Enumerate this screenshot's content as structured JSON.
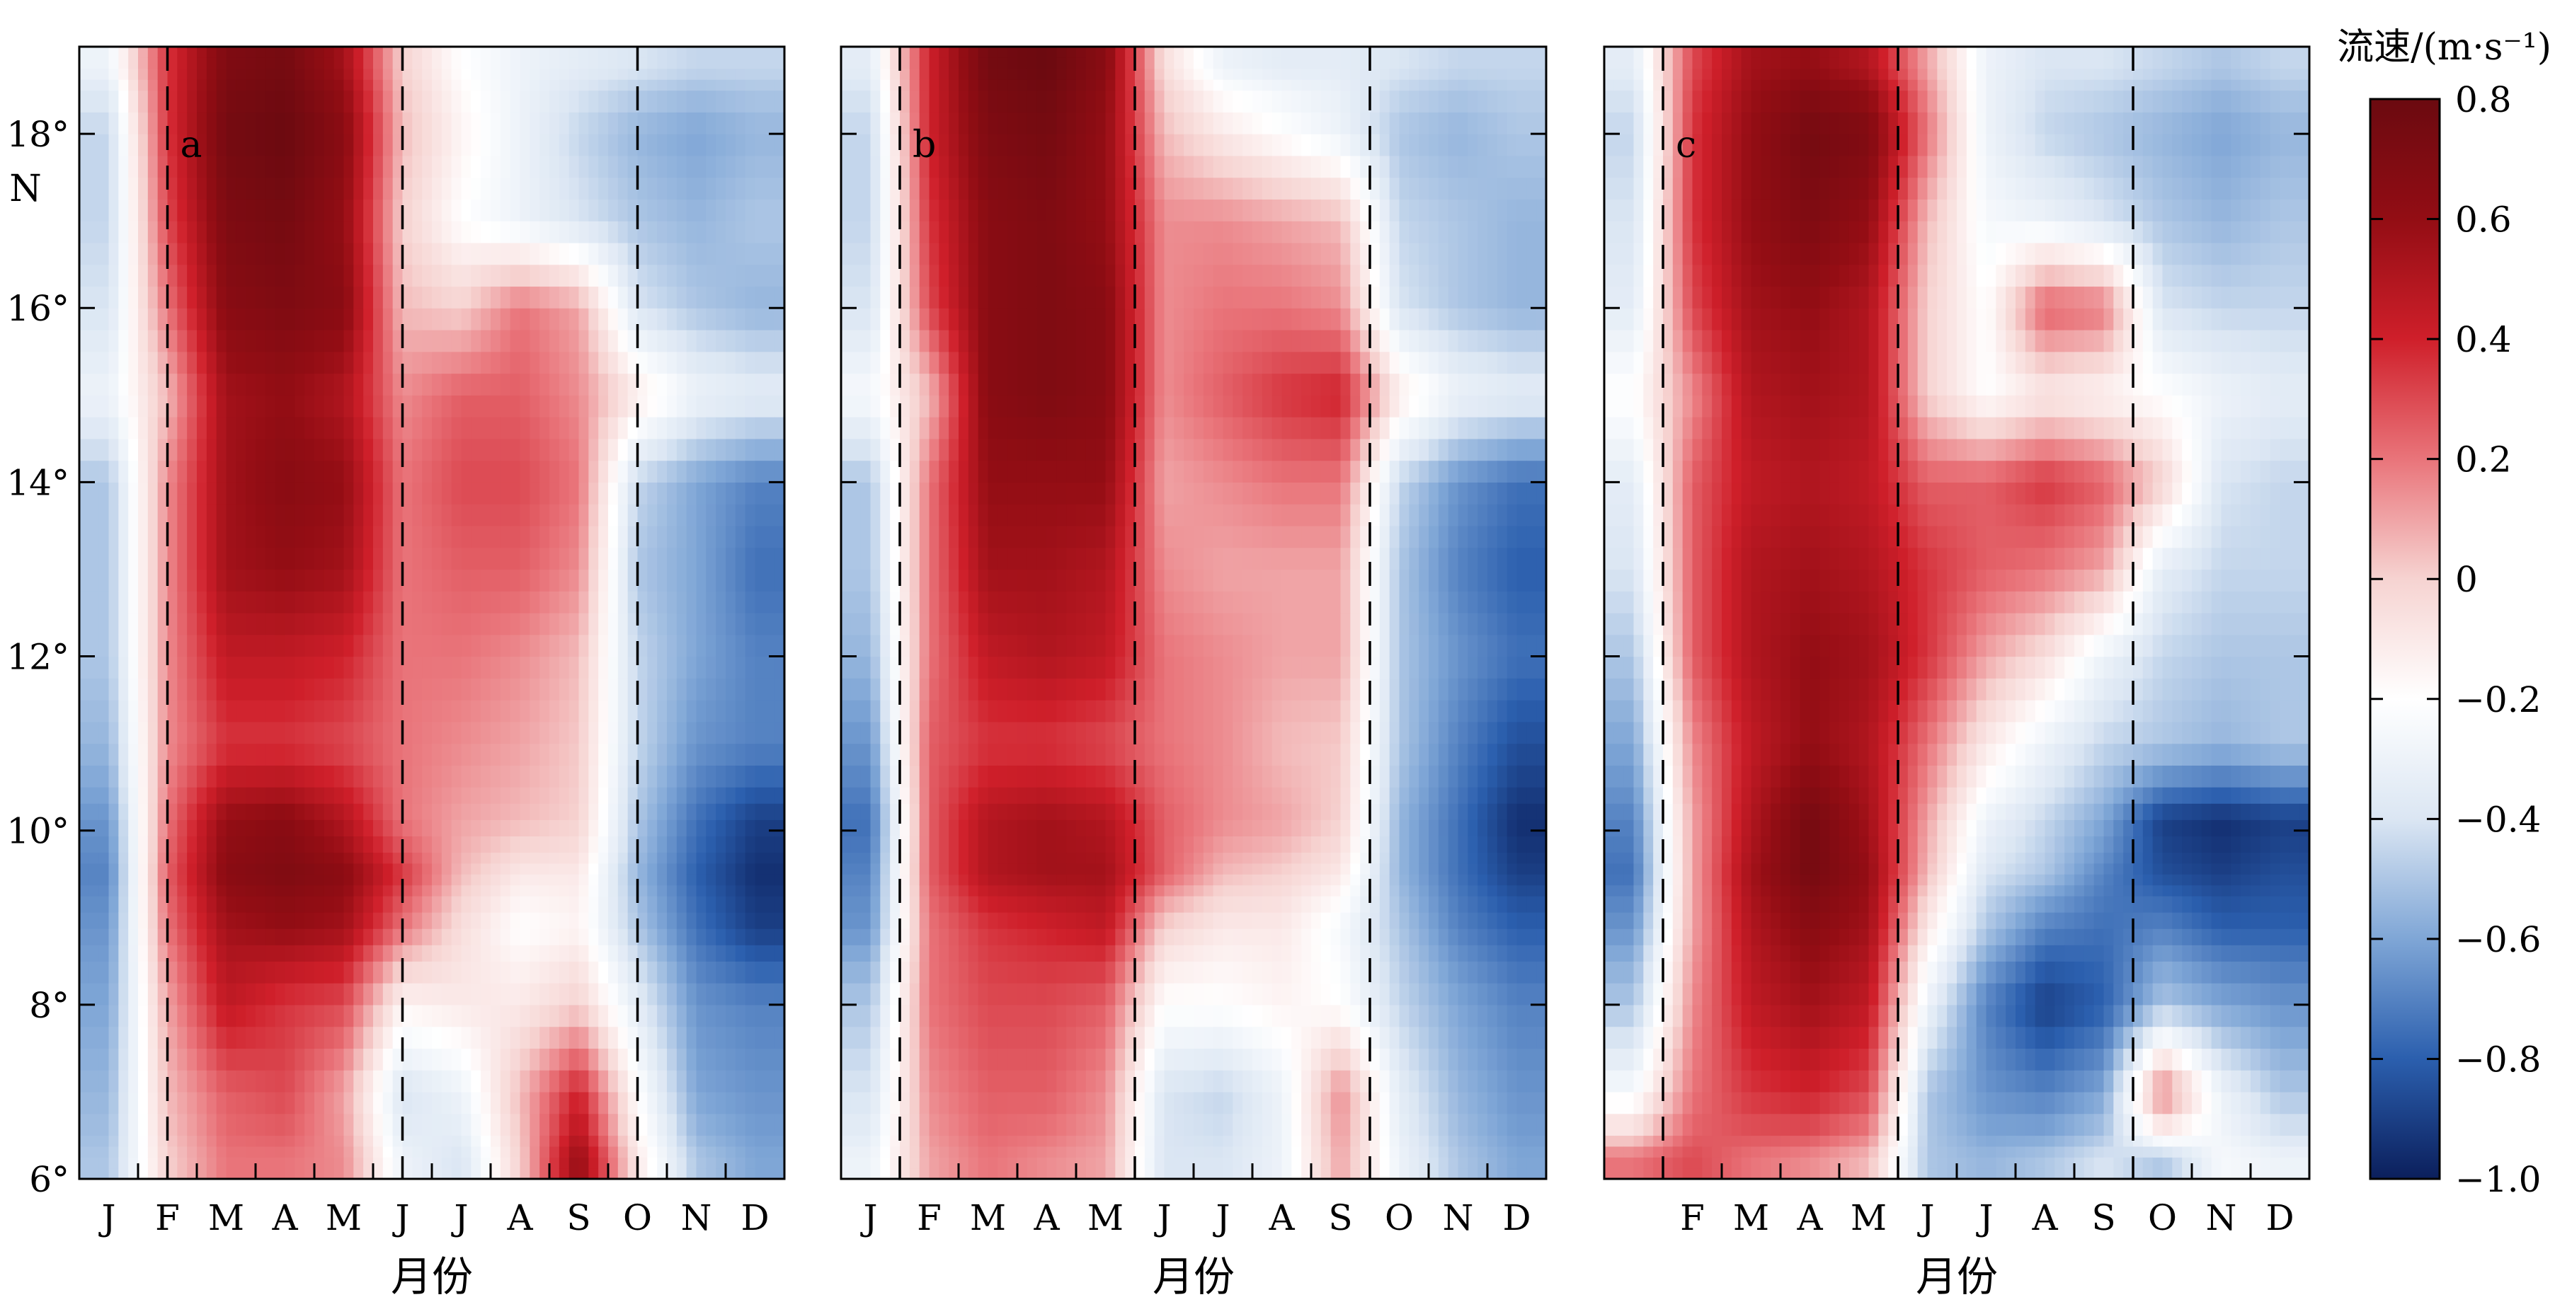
{
  "chart_data": {
    "type": "heatmap",
    "xlabel": "月份",
    "ylabel_suffix": "N",
    "x_months": [
      "J",
      "F",
      "M",
      "A",
      "M",
      "J",
      "J",
      "A",
      "S",
      "O",
      "N",
      "D"
    ],
    "y_ticks": [
      6,
      8,
      10,
      12,
      14,
      16,
      18
    ],
    "y_tick_labels": [
      "6°",
      "8°",
      "10°",
      "12°",
      "14°",
      "16°",
      "18°"
    ],
    "ylim": [
      6,
      19
    ],
    "colorbar": {
      "title": "流速/(m·s⁻¹)",
      "range": [
        -1.0,
        0.8
      ],
      "ticks": [
        0.8,
        0.6,
        0.4,
        0.2,
        0,
        -0.2,
        -0.4,
        -0.6,
        -0.8,
        -1.0
      ],
      "tick_labels": [
        "0.8",
        "0.6",
        "0.4",
        "0.2",
        "0",
        "−0.2",
        "−0.4",
        "−0.6",
        "−0.8",
        "−1.0"
      ],
      "colors": [
        "#0b1f5c",
        "#2b5fae",
        "#7fa6d6",
        "#dbe6f3",
        "#ffffff",
        "#f6d3d1",
        "#e9747a",
        "#cf1f2a",
        "#930d14",
        "#6b0a10"
      ]
    },
    "panels": [
      {
        "label": "a",
        "month_labels": [
          "J",
          "F",
          "M",
          "A",
          "M",
          "J",
          "J",
          "A",
          "S",
          "O",
          "N",
          "D"
        ],
        "dashed_months": [
          1.5,
          5.5,
          9.5
        ],
        "latitudes": [
          6,
          7,
          8,
          9,
          9.5,
          10,
          11,
          12,
          13,
          14,
          15,
          16,
          17,
          18,
          19
        ],
        "values": [
          [
            -0.5,
            0.0,
            0.2,
            0.2,
            0.15,
            -0.3,
            -0.4,
            0.0,
            0.6,
            -0.1,
            -0.5,
            -0.6
          ],
          [
            -0.55,
            0.05,
            0.25,
            0.3,
            0.1,
            -0.4,
            -0.3,
            0.05,
            0.4,
            -0.2,
            -0.6,
            -0.65
          ],
          [
            -0.6,
            0.1,
            0.45,
            0.35,
            0.3,
            -0.15,
            -0.1,
            -0.1,
            0.0,
            -0.35,
            -0.65,
            -0.7
          ],
          [
            -0.65,
            0.2,
            0.55,
            0.6,
            0.55,
            0.2,
            -0.05,
            -0.2,
            -0.15,
            -0.5,
            -0.75,
            -0.9
          ],
          [
            -0.7,
            0.25,
            0.65,
            0.7,
            0.65,
            0.35,
            0.05,
            -0.1,
            -0.1,
            -0.55,
            -0.8,
            -0.95
          ],
          [
            -0.65,
            0.2,
            0.6,
            0.65,
            0.5,
            0.2,
            0.1,
            0.05,
            0.0,
            -0.5,
            -0.75,
            -0.9
          ],
          [
            -0.55,
            0.15,
            0.35,
            0.35,
            0.3,
            0.2,
            0.15,
            0.1,
            0.02,
            -0.45,
            -0.65,
            -0.7
          ],
          [
            -0.5,
            0.15,
            0.45,
            0.45,
            0.4,
            0.2,
            0.2,
            0.15,
            0.05,
            -0.45,
            -0.6,
            -0.7
          ],
          [
            -0.5,
            0.15,
            0.55,
            0.6,
            0.55,
            0.2,
            0.25,
            0.25,
            0.15,
            -0.5,
            -0.6,
            -0.75
          ],
          [
            -0.5,
            0.15,
            0.55,
            0.65,
            0.6,
            0.2,
            0.3,
            0.3,
            0.2,
            -0.45,
            -0.6,
            -0.7
          ],
          [
            -0.3,
            0.05,
            0.55,
            0.6,
            0.5,
            0.15,
            0.25,
            0.25,
            0.15,
            -0.1,
            -0.3,
            -0.35
          ],
          [
            -0.4,
            0.2,
            0.65,
            0.7,
            0.65,
            0.05,
            0.0,
            0.2,
            0.1,
            -0.4,
            -0.5,
            -0.55
          ],
          [
            -0.45,
            0.3,
            0.7,
            0.75,
            0.6,
            0.0,
            -0.2,
            -0.3,
            -0.4,
            -0.5,
            -0.55,
            -0.5
          ],
          [
            -0.45,
            0.35,
            0.75,
            0.8,
            0.65,
            0.05,
            -0.15,
            -0.3,
            -0.45,
            -0.55,
            -0.6,
            -0.55
          ],
          [
            -0.3,
            0.35,
            0.7,
            0.75,
            0.55,
            0.0,
            -0.2,
            -0.3,
            -0.35,
            -0.4,
            -0.45,
            -0.45
          ]
        ]
      },
      {
        "label": "b",
        "month_labels": [
          "J",
          "F",
          "M",
          "A",
          "M",
          "J",
          "J",
          "A",
          "S",
          "O",
          "N",
          "D"
        ],
        "dashed_months": [
          1.0,
          5.0,
          9.0
        ],
        "latitudes": [
          6,
          7,
          8,
          9,
          9.5,
          10,
          11,
          12,
          13,
          14,
          15,
          16,
          17,
          18,
          19
        ],
        "values": [
          [
            -0.3,
            0.1,
            0.2,
            0.15,
            0.1,
            -0.4,
            -0.4,
            -0.3,
            0.1,
            -0.3,
            -0.5,
            -0.6
          ],
          [
            -0.4,
            0.15,
            0.25,
            0.25,
            0.15,
            -0.4,
            -0.45,
            -0.3,
            0.15,
            -0.35,
            -0.55,
            -0.65
          ],
          [
            -0.5,
            0.2,
            0.3,
            0.3,
            0.25,
            -0.2,
            -0.2,
            -0.15,
            -0.2,
            -0.45,
            -0.6,
            -0.7
          ],
          [
            -0.65,
            0.2,
            0.35,
            0.4,
            0.45,
            0.0,
            -0.1,
            -0.1,
            -0.25,
            -0.5,
            -0.7,
            -0.8
          ],
          [
            -0.7,
            0.25,
            0.5,
            0.55,
            0.55,
            0.25,
            0.05,
            0.0,
            -0.1,
            -0.55,
            -0.75,
            -0.9
          ],
          [
            -0.75,
            0.25,
            0.5,
            0.55,
            0.5,
            0.25,
            0.15,
            0.1,
            0.0,
            -0.55,
            -0.75,
            -0.95
          ],
          [
            -0.65,
            0.25,
            0.35,
            0.35,
            0.3,
            0.2,
            0.15,
            0.05,
            0.02,
            -0.5,
            -0.7,
            -0.85
          ],
          [
            -0.55,
            0.2,
            0.45,
            0.5,
            0.45,
            0.2,
            0.15,
            0.1,
            0.1,
            -0.5,
            -0.65,
            -0.75
          ],
          [
            -0.5,
            0.2,
            0.55,
            0.55,
            0.5,
            0.15,
            0.1,
            0.1,
            0.1,
            -0.5,
            -0.7,
            -0.8
          ],
          [
            -0.5,
            0.2,
            0.6,
            0.6,
            0.6,
            0.1,
            0.15,
            0.2,
            0.2,
            -0.45,
            -0.65,
            -0.75
          ],
          [
            -0.25,
            0.05,
            0.65,
            0.7,
            0.65,
            0.15,
            0.25,
            0.35,
            0.4,
            -0.1,
            -0.3,
            -0.35
          ],
          [
            -0.4,
            0.3,
            0.65,
            0.7,
            0.65,
            0.15,
            0.2,
            0.2,
            0.15,
            -0.4,
            -0.5,
            -0.55
          ],
          [
            -0.45,
            0.35,
            0.65,
            0.7,
            0.6,
            0.15,
            0.15,
            0.1,
            0.05,
            -0.45,
            -0.5,
            -0.55
          ],
          [
            -0.45,
            0.4,
            0.7,
            0.75,
            0.6,
            0.05,
            -0.1,
            -0.2,
            -0.3,
            -0.5,
            -0.55,
            -0.5
          ],
          [
            -0.35,
            0.4,
            0.75,
            0.8,
            0.65,
            -0.05,
            -0.3,
            -0.35,
            -0.35,
            -0.4,
            -0.45,
            -0.45
          ]
        ]
      },
      {
        "label": "c",
        "month_labels": [
          "",
          "F",
          "M",
          "A",
          "M",
          "J",
          "J",
          "A",
          "S",
          "O",
          "N",
          "D"
        ],
        "dashed_months": [
          1.0,
          5.0,
          9.0
        ],
        "latitudes": [
          6,
          7,
          8,
          9,
          9.5,
          10,
          11,
          12,
          13,
          14,
          15,
          16,
          17,
          18,
          19
        ],
        "values": [
          [
            0.2,
            0.3,
            0.2,
            0.15,
            0.05,
            -0.5,
            -0.55,
            -0.5,
            -0.4,
            -0.5,
            -0.25,
            -0.3
          ],
          [
            -0.25,
            0.2,
            0.35,
            0.4,
            0.3,
            -0.5,
            -0.65,
            -0.7,
            -0.6,
            0.2,
            -0.3,
            -0.5
          ],
          [
            -0.5,
            0.15,
            0.45,
            0.55,
            0.45,
            -0.3,
            -0.7,
            -0.9,
            -0.8,
            -0.5,
            -0.6,
            -0.65
          ],
          [
            -0.65,
            0.1,
            0.5,
            0.65,
            0.55,
            -0.1,
            -0.5,
            -0.7,
            -0.75,
            -0.7,
            -0.8,
            -0.8
          ],
          [
            -0.75,
            0.1,
            0.55,
            0.75,
            0.6,
            0.05,
            -0.4,
            -0.5,
            -0.7,
            -0.85,
            -0.9,
            -0.85
          ],
          [
            -0.7,
            0.1,
            0.5,
            0.75,
            0.55,
            0.1,
            -0.3,
            -0.45,
            -0.6,
            -0.9,
            -0.95,
            -0.9
          ],
          [
            -0.6,
            0.15,
            0.45,
            0.6,
            0.5,
            0.2,
            -0.1,
            -0.3,
            -0.45,
            -0.5,
            -0.55,
            -0.5
          ],
          [
            -0.5,
            0.25,
            0.5,
            0.6,
            0.55,
            0.35,
            0.1,
            -0.05,
            -0.3,
            -0.45,
            -0.5,
            -0.5
          ],
          [
            -0.4,
            0.25,
            0.5,
            0.55,
            0.5,
            0.35,
            0.25,
            0.2,
            0.1,
            -0.35,
            -0.45,
            -0.45
          ],
          [
            -0.35,
            0.25,
            0.45,
            0.5,
            0.45,
            0.25,
            0.25,
            0.35,
            0.25,
            0.0,
            -0.4,
            -0.45
          ],
          [
            -0.2,
            0.15,
            0.5,
            0.55,
            0.5,
            0.0,
            -0.2,
            -0.1,
            -0.15,
            -0.2,
            -0.3,
            -0.35
          ],
          [
            -0.35,
            0.3,
            0.55,
            0.6,
            0.5,
            0.0,
            -0.2,
            0.25,
            0.2,
            -0.4,
            -0.45,
            -0.45
          ],
          [
            -0.4,
            0.35,
            0.6,
            0.7,
            0.6,
            0.05,
            -0.25,
            -0.3,
            -0.4,
            -0.5,
            -0.55,
            -0.5
          ],
          [
            -0.45,
            0.35,
            0.6,
            0.75,
            0.7,
            0.2,
            -0.3,
            -0.45,
            -0.5,
            -0.55,
            -0.6,
            -0.55
          ],
          [
            -0.35,
            0.3,
            0.55,
            0.6,
            0.5,
            0.1,
            -0.3,
            -0.4,
            -0.4,
            -0.45,
            -0.5,
            -0.45
          ]
        ]
      }
    ]
  }
}
